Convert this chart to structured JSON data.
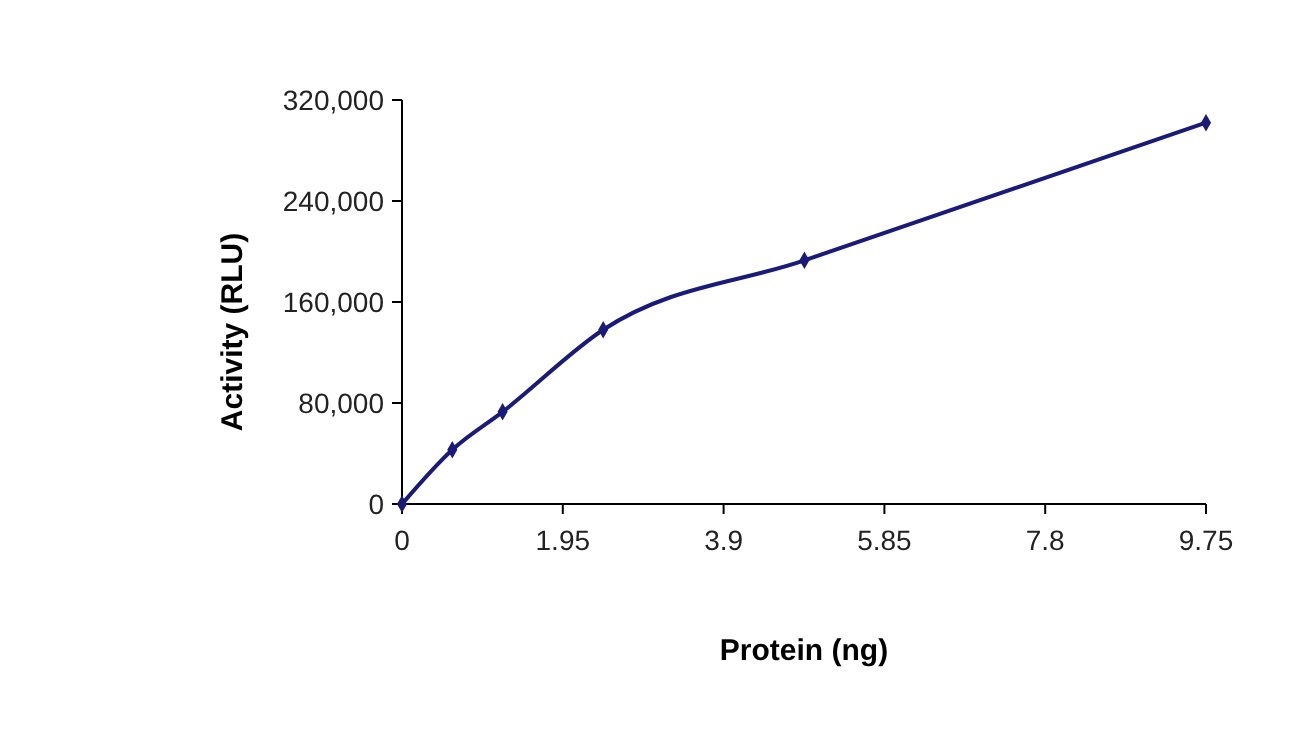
{
  "chart_data": {
    "type": "line",
    "xlabel": "Protein (ng)",
    "ylabel": "Activity (RLU)",
    "x": [
      0,
      0.61,
      1.22,
      2.44,
      4.88,
      9.75
    ],
    "series": [
      {
        "color": "#1a1a7a",
        "values": [
          0,
          43000,
          73000,
          138000,
          193000,
          302000
        ]
      }
    ],
    "xlim": [
      0,
      9.75
    ],
    "xticks": [
      0,
      1.95,
      3.9,
      5.85,
      7.8,
      9.75
    ],
    "ylim": [
      0,
      320000
    ],
    "yticks": [
      {
        "value": 0,
        "label": "0"
      },
      {
        "value": 80000,
        "label": "80,000"
      },
      {
        "value": 160000,
        "label": "160,000"
      },
      {
        "value": 240000,
        "label": "240,000"
      },
      {
        "value": 320000,
        "label": "320,000"
      }
    ],
    "marker": "diamond",
    "grid": false
  }
}
